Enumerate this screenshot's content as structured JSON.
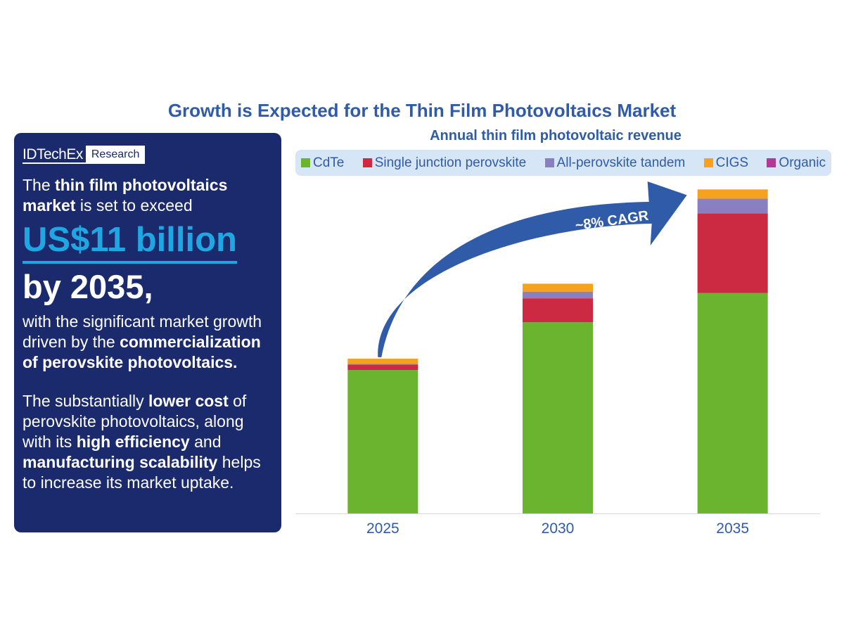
{
  "title": "Growth is Expected for the Thin Film Photovoltaics Market",
  "panel": {
    "logo_brand": "IDTechEx",
    "logo_research": "Research",
    "p1_a": "The ",
    "p1_b": "thin film photovoltaics market",
    "p1_c": " is set to exceed",
    "big_value": "US$11 billion",
    "by_year": "by 2035,",
    "p2_a": "with the significant market growth driven by the ",
    "p2_b": "commercialization of perovskite photovoltaics.",
    "p3_a": "The substantially ",
    "p3_b": "lower cost",
    "p3_c": " of perovskite photovoltaics, along with its ",
    "p3_d": "high efficiency",
    "p3_e": " and ",
    "p3_f": "manufacturing scalability",
    "p3_g": " helps to increase its market uptake."
  },
  "annotation": "~8% CAGR",
  "colors": {
    "title": "#2f5ba8",
    "panel_bg": "#1a2a6c",
    "highlight": "#1ea7e3",
    "arrow": "#2f5ba8",
    "axis_text": "#2f5ba8"
  },
  "chart_data": {
    "type": "bar",
    "stacked": true,
    "title": "Annual thin film photovoltaic revenue",
    "categories": [
      "2025",
      "2030",
      "2035"
    ],
    "series": [
      {
        "name": "CdTe",
        "color": "#6ab42f",
        "values": [
          5.4,
          7.2,
          8.3
        ]
      },
      {
        "name": "Single junction perovskite",
        "color": "#cc2a42",
        "values": [
          0.2,
          0.9,
          3.0
        ]
      },
      {
        "name": "All-perovskite tandem",
        "color": "#8a7fc0",
        "values": [
          0.03,
          0.25,
          0.55
        ]
      },
      {
        "name": "CIGS",
        "color": "#f6a21e",
        "values": [
          0.2,
          0.3,
          0.35
        ]
      },
      {
        "name": "Organic",
        "color": "#b03a95",
        "values": [
          0.0,
          0.0,
          0.0
        ]
      }
    ],
    "ylim": [
      0,
      12.5
    ],
    "grid": false,
    "legend_position": "top",
    "xlabel": "",
    "ylabel": ""
  }
}
